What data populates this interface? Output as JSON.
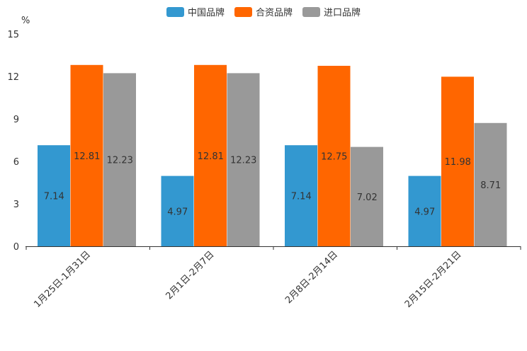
{
  "chart_data": {
    "type": "bar",
    "title": "",
    "ylabel": "%",
    "xlabel": "",
    "ylim": [
      0,
      15
    ],
    "yticks": [
      0,
      3,
      6,
      9,
      12,
      15
    ],
    "categories": [
      "1月25日-1月31日",
      "2月1日-2月7日",
      "2月8日-2月14日",
      "2月15日-2月21日"
    ],
    "series": [
      {
        "name": "中国品牌",
        "color": "#3398D0",
        "values": [
          7.14,
          4.97,
          7.14,
          4.97
        ]
      },
      {
        "name": "合资品牌",
        "color": "#FF6600",
        "values": [
          12.81,
          12.81,
          12.75,
          11.98
        ]
      },
      {
        "name": "进口品牌",
        "color": "#999999",
        "values": [
          12.23,
          12.23,
          7.02,
          8.71
        ]
      }
    ],
    "legend_position": "top-center",
    "grid": false
  }
}
